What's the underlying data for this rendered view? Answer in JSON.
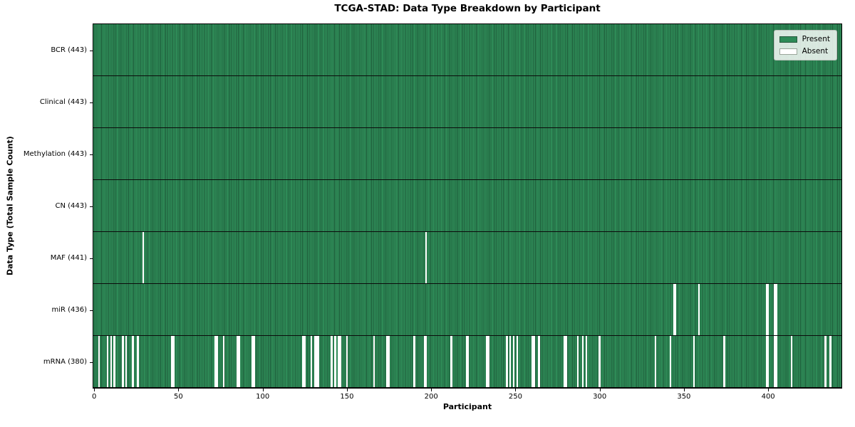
{
  "title": "TCGA-STAD: Data Type Breakdown by Participant",
  "axes": {
    "xlabel": "Participant",
    "ylabel": "Data Type (Total Sample Count)"
  },
  "legend": {
    "items": [
      {
        "label": "Present",
        "color": "#2E8B57"
      },
      {
        "label": "Absent",
        "color": "#FFFFFF"
      }
    ]
  },
  "colors": {
    "present_fill": "#2E8B57",
    "bar_edge": "#1d5a39",
    "absent_fill": "#FFFFFF",
    "row_divider": "#0b0b0b",
    "plot_border": "#000000",
    "legend_background": "#EDF2ED",
    "legend_border": "#B9C0B9",
    "text": "#000000"
  },
  "chart_data": {
    "type": "heatmap",
    "title": "TCGA-STAD: Data Type Breakdown by Participant",
    "xlabel": "Participant",
    "ylabel": "Data Type (Total Sample Count)",
    "legend_entries": [
      "Present",
      "Absent"
    ],
    "legend_position": "upper right",
    "grid": false,
    "n_participants": 443,
    "x_axis": {
      "min": -0.5,
      "max": 443.5,
      "ticks": [
        0,
        50,
        100,
        150,
        200,
        250,
        300,
        350,
        400
      ]
    },
    "rows": [
      {
        "name": "BCR",
        "label": "BCR (443)",
        "present_count": 443,
        "absent_participants": []
      },
      {
        "name": "Clinical",
        "label": "Clinical (443)",
        "present_count": 443,
        "absent_participants": []
      },
      {
        "name": "Methylation",
        "label": "Methylation (443)",
        "present_count": 443,
        "absent_participants": []
      },
      {
        "name": "CN",
        "label": "CN (443)",
        "present_count": 443,
        "absent_participants": []
      },
      {
        "name": "MAF",
        "label": "MAF (441)",
        "present_count": 441,
        "absent_participants": [
          29,
          197
        ]
      },
      {
        "name": "miR",
        "label": "miR (436)",
        "present_count": 436,
        "absent_participants": [
          344,
          345,
          359,
          399,
          400,
          404,
          405
        ]
      },
      {
        "name": "mRNA",
        "label": "mRNA (380)",
        "present_count": 380,
        "absent_participants": [
          3,
          8,
          10,
          12,
          17,
          19,
          23,
          26,
          46,
          47,
          72,
          73,
          77,
          85,
          86,
          94,
          95,
          124,
          125,
          129,
          131,
          132,
          133,
          141,
          143,
          145,
          146,
          150,
          166,
          174,
          175,
          190,
          196,
          197,
          212,
          221,
          222,
          233,
          234,
          245,
          247,
          249,
          251,
          260,
          261,
          264,
          279,
          280,
          287,
          290,
          292,
          300,
          333,
          342,
          356,
          374,
          399,
          400,
          404,
          405,
          414,
          434,
          437
        ]
      }
    ]
  }
}
